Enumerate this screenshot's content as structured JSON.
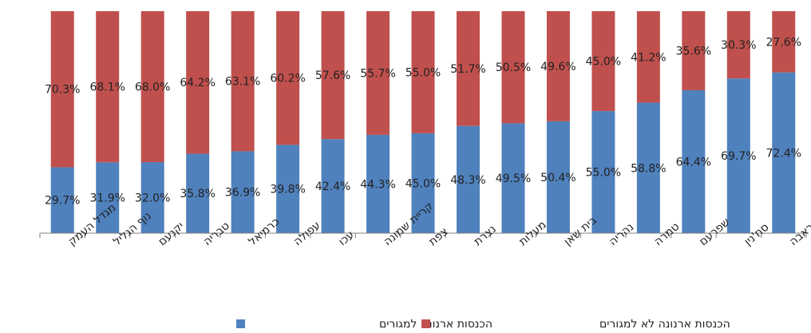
{
  "chart_data": {
    "type": "bar",
    "stacked": true,
    "percent_stacked": true,
    "categories": [
      "מגדל העמק",
      "נוף הגליל",
      "יקנעם",
      "טבריה",
      "כרמיאל",
      "עפולה",
      "עכו",
      "קריית שמונה",
      "צפת",
      "נצרת",
      "מעלות",
      "בית שאן",
      "נהריה",
      "טמרה",
      "שפרעם",
      "סח'נין",
      "עראבה"
    ],
    "series": [
      {
        "name": "הכנסות ארנונה למגורים",
        "color": "#4f81bd",
        "values": [
          29.7,
          31.9,
          32.0,
          35.8,
          36.9,
          39.8,
          42.4,
          44.3,
          45.0,
          48.3,
          49.5,
          50.4,
          55.0,
          58.8,
          64.4,
          69.7,
          72.4
        ],
        "labels": [
          "29.7%",
          "31.9%",
          "32.0%",
          "35.8%",
          "36.9%",
          "39.8%",
          "42.4%",
          "44.3%",
          "45.0%",
          "48.3%",
          "49.5%",
          "50.4%",
          "55.0%",
          "58.8%",
          "64.4%",
          "69.7%",
          "72.4%"
        ]
      },
      {
        "name": "הכנסות ארנונה לא למגורים",
        "color": "#c0504d",
        "values": [
          70.3,
          68.1,
          68.0,
          64.2,
          63.1,
          60.2,
          57.6,
          55.7,
          55.0,
          51.7,
          50.5,
          49.6,
          45.0,
          41.2,
          35.6,
          30.3,
          27.6
        ],
        "labels": [
          "70.3%",
          "68.1%",
          "68.0%",
          "64.2%",
          "63.1%",
          "60.2%",
          "57.6%",
          "55.7%",
          "55.0%",
          "51.7%",
          "50.5%",
          "49.6%",
          "45.0%",
          "41.2%",
          "35.6%",
          "30.3%",
          "27.6%"
        ]
      }
    ],
    "ylim": [
      0,
      100
    ],
    "grid": false,
    "legend": "bottom"
  }
}
